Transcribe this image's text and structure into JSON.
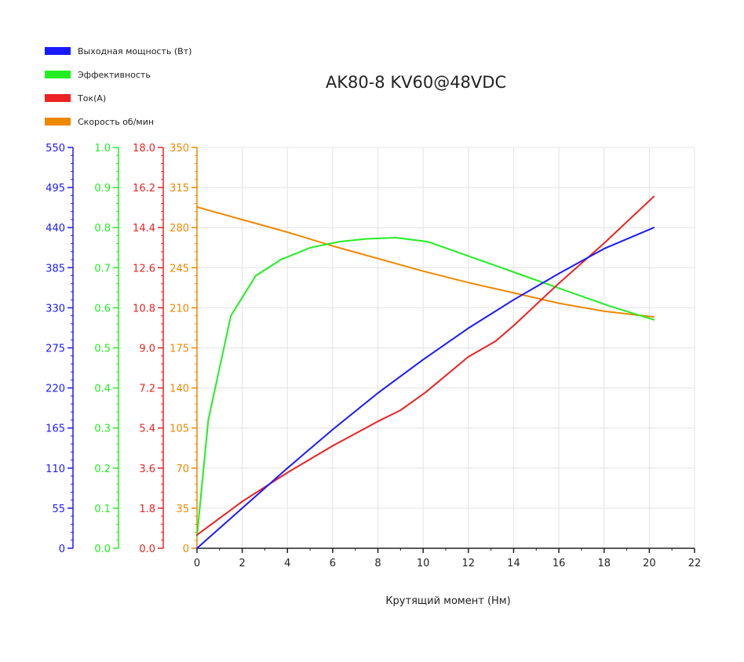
{
  "chart_data": {
    "type": "line",
    "title": "AK80-8 KV60@48VDC",
    "xlabel": "Крутящий момент (Нм)",
    "x_axis": {
      "min": 0,
      "max": 22,
      "ticks": [
        "0",
        "2",
        "4",
        "6",
        "8",
        "10",
        "12",
        "14",
        "16",
        "18",
        "20",
        "22"
      ]
    },
    "grid": true,
    "legend_position": "top-left",
    "y_axes": [
      {
        "id": "power",
        "color": "#1a1aff",
        "min": 0,
        "max": 550,
        "ticks": [
          "0",
          "55",
          "110",
          "165",
          "220",
          "275",
          "330",
          "385",
          "440",
          "495",
          "550"
        ]
      },
      {
        "id": "efficiency",
        "color": "#22ee22",
        "min": 0,
        "max": 1,
        "ticks": [
          "0.0",
          "0.1",
          "0.2",
          "0.3",
          "0.4",
          "0.5",
          "0.6",
          "0.7",
          "0.8",
          "0.9",
          "1.0"
        ]
      },
      {
        "id": "current",
        "color": "#ee2222",
        "min": 0,
        "max": 18,
        "ticks": [
          "0.0",
          "1.8",
          "3.6",
          "5.4",
          "7.2",
          "9.0",
          "10.8",
          "12.6",
          "14.4",
          "16.2",
          "18.0"
        ]
      },
      {
        "id": "speed",
        "color": "#ee8800",
        "min": 0,
        "max": 350,
        "ticks": [
          "0",
          "35",
          "70",
          "105",
          "140",
          "175",
          "210",
          "245",
          "280",
          "315",
          "350"
        ]
      }
    ],
    "series": [
      {
        "name": "Выходная мощность (Вт)",
        "color": "#1a1aff",
        "axis": "power",
        "points": [
          [
            0,
            0
          ],
          [
            2,
            55
          ],
          [
            4,
            110
          ],
          [
            6,
            163
          ],
          [
            8,
            213
          ],
          [
            10,
            259
          ],
          [
            12,
            302
          ],
          [
            14,
            341
          ],
          [
            16,
            377
          ],
          [
            18,
            411
          ],
          [
            20.2,
            440
          ]
        ]
      },
      {
        "name": "Эффективность",
        "color": "#22ee22",
        "axis": "efficiency",
        "points": [
          [
            0,
            0.03
          ],
          [
            0.5,
            0.32
          ],
          [
            1.5,
            0.58
          ],
          [
            2.6,
            0.68
          ],
          [
            3.7,
            0.72
          ],
          [
            5,
            0.75
          ],
          [
            6.3,
            0.765
          ],
          [
            7.5,
            0.772
          ],
          [
            8.8,
            0.775
          ],
          [
            10.2,
            0.765
          ],
          [
            13.2,
            0.705
          ],
          [
            14.2,
            0.685
          ],
          [
            16.2,
            0.645
          ],
          [
            18.2,
            0.605
          ],
          [
            20.2,
            0.57
          ]
        ]
      },
      {
        "name": "Ток(А)",
        "color": "#ee2222",
        "axis": "current",
        "points": [
          [
            0,
            0.6
          ],
          [
            2,
            2.1
          ],
          [
            4,
            3.4
          ],
          [
            6,
            4.6
          ],
          [
            8,
            5.7
          ],
          [
            9,
            6.2
          ],
          [
            10.1,
            7.0
          ],
          [
            12,
            8.6
          ],
          [
            13.2,
            9.3
          ],
          [
            14,
            10.0
          ],
          [
            16,
            11.9
          ],
          [
            18,
            13.7
          ],
          [
            20.2,
            15.8
          ]
        ]
      },
      {
        "name": "Скорость об/мин",
        "color": "#ee8800",
        "axis": "speed",
        "points": [
          [
            0,
            298
          ],
          [
            2,
            287
          ],
          [
            4,
            276
          ],
          [
            6,
            264
          ],
          [
            8,
            253
          ],
          [
            10,
            242
          ],
          [
            12,
            232
          ],
          [
            14,
            223
          ],
          [
            16,
            214
          ],
          [
            18,
            207
          ],
          [
            20.2,
            202
          ]
        ]
      }
    ]
  }
}
